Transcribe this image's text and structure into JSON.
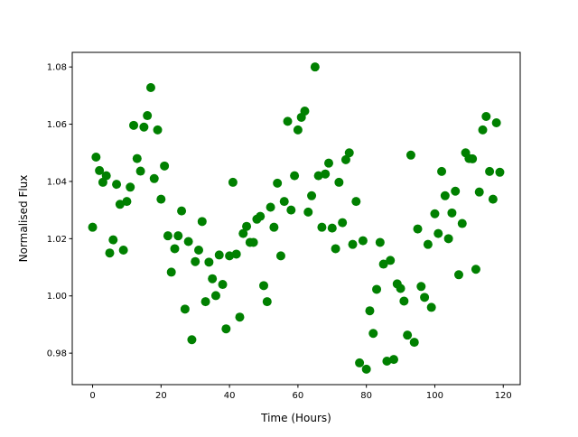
{
  "chart_data": {
    "type": "scatter",
    "title": "",
    "xlabel": "Time (Hours)",
    "ylabel": "Normalised Flux",
    "xlim": [
      -5.95,
      124.95
    ],
    "ylim": [
      0.969,
      1.0851
    ],
    "xticks": [
      0,
      20,
      40,
      60,
      80,
      100,
      120
    ],
    "xtick_labels": [
      "0",
      "20",
      "40",
      "60",
      "80",
      "100",
      "120"
    ],
    "yticks": [
      0.98,
      1.0,
      1.02,
      1.04,
      1.06,
      1.08
    ],
    "ytick_labels": [
      "0.98",
      "1.00",
      "1.02",
      "1.04",
      "1.06",
      "1.08"
    ],
    "grid": false,
    "marker_color": "#008000",
    "x": [
      0,
      1,
      2,
      3,
      4,
      5,
      6,
      7,
      8,
      9,
      10,
      11,
      12,
      13,
      14,
      15,
      16,
      17,
      18,
      19,
      20,
      21,
      22,
      23,
      24,
      25,
      26,
      27,
      28,
      29,
      30,
      31,
      32,
      33,
      34,
      35,
      36,
      37,
      38,
      39,
      40,
      41,
      42,
      43,
      44,
      45,
      46,
      47,
      48,
      49,
      50,
      51,
      52,
      53,
      54,
      55,
      56,
      57,
      58,
      59,
      60,
      61,
      62,
      63,
      64,
      65,
      66,
      67,
      68,
      69,
      70,
      71,
      72,
      73,
      74,
      75,
      76,
      77,
      78,
      79,
      80,
      81,
      82,
      83,
      84,
      85,
      86,
      87,
      88,
      89,
      90,
      91,
      92,
      93,
      94,
      95,
      96,
      97,
      98,
      99,
      100,
      101,
      102,
      103,
      104,
      105,
      106,
      107,
      108,
      109,
      110,
      111,
      112,
      113,
      114,
      115,
      116,
      117,
      118,
      119
    ],
    "y": [
      1.024,
      1.0485,
      1.0438,
      1.0397,
      1.042,
      1.015,
      1.0196,
      1.039,
      1.032,
      1.016,
      1.033,
      1.038,
      1.0596,
      1.048,
      1.0436,
      1.059,
      1.063,
      1.0728,
      1.041,
      1.058,
      1.0338,
      1.0454,
      1.021,
      1.0083,
      1.0165,
      1.021,
      1.0297,
      0.9954,
      1.019,
      0.9847,
      1.012,
      1.016,
      1.026,
      0.998,
      1.0118,
      1.006,
      1.0001,
      1.0143,
      1.004,
      0.9885,
      1.014,
      1.0397,
      1.0146,
      0.9926,
      1.0218,
      1.0243,
      1.0187,
      1.0187,
      1.0268,
      1.0278,
      1.0036,
      0.998,
      1.031,
      1.024,
      1.0394,
      1.014,
      1.033,
      1.061,
      1.03,
      1.042,
      1.058,
      1.0624,
      1.0646,
      1.0293,
      1.035,
      1.08,
      1.042,
      1.024,
      1.0426,
      1.0464,
      1.0237,
      1.0165,
      1.0397,
      1.0256,
      1.0476,
      1.05,
      1.018,
      1.033,
      0.9766,
      1.0193,
      0.9744,
      0.9948,
      0.9869,
      1.0023,
      1.0187,
      1.0111,
      0.9772,
      1.0124,
      0.9778,
      1.0042,
      1.0026,
      0.9982,
      0.9863,
      1.0492,
      0.9838,
      1.0234,
      1.0033,
      0.9995,
      1.018,
      0.996,
      1.0287,
      1.0218,
      1.0435,
      1.035,
      1.02,
      1.029,
      1.0366,
      1.0074,
      1.0253,
      1.05,
      1.048,
      1.0479,
      1.0093,
      1.0363,
      1.058,
      1.0627,
      1.0435,
      1.0338,
      1.0605,
      1.0432
    ]
  }
}
